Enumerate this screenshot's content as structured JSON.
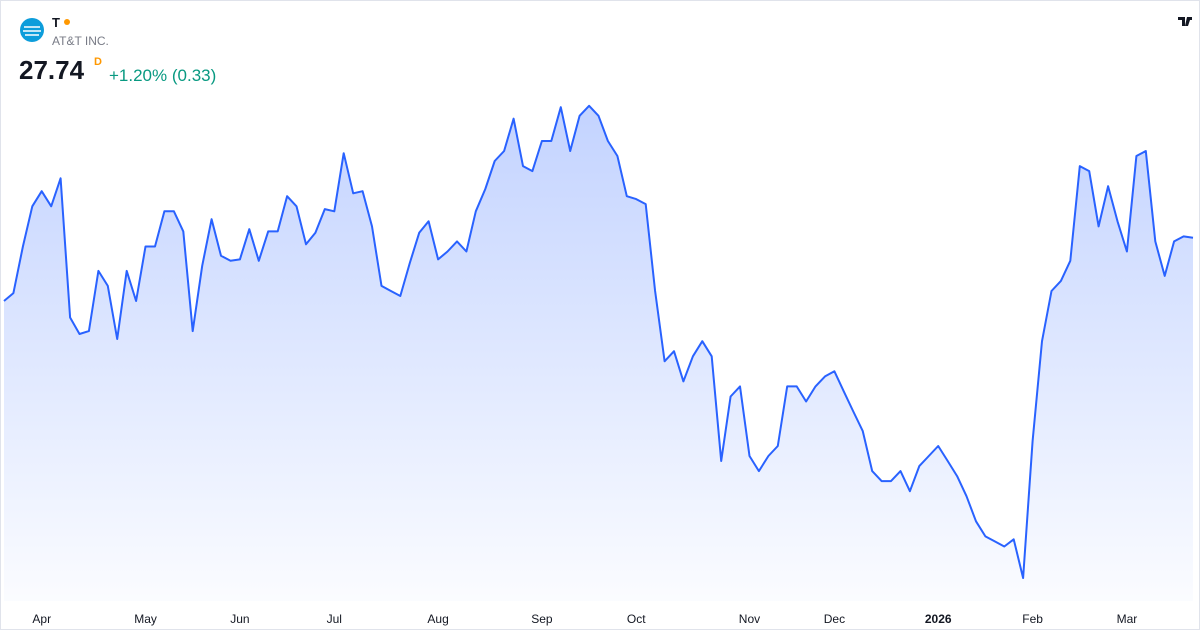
{
  "header": {
    "symbol": "T",
    "name": "AT&T INC.",
    "price": "27.74",
    "interval": "D",
    "change": "+1.20% (0.33)"
  },
  "chart_data": {
    "type": "area",
    "values": [
      26.86,
      26.97,
      27.62,
      28.18,
      28.39,
      28.18,
      28.57,
      26.63,
      26.4,
      26.44,
      27.28,
      27.07,
      26.33,
      27.28,
      26.86,
      27.62,
      27.62,
      28.11,
      28.11,
      27.83,
      26.44,
      27.35,
      28.0,
      27.49,
      27.42,
      27.44,
      27.86,
      27.42,
      27.83,
      27.83,
      28.32,
      28.18,
      27.65,
      27.81,
      28.14,
      28.11,
      28.92,
      28.36,
      28.39,
      27.9,
      27.07,
      27.0,
      26.93,
      27.39,
      27.81,
      27.97,
      27.44,
      27.55,
      27.69,
      27.55,
      28.11,
      28.42,
      28.81,
      28.95,
      29.4,
      28.74,
      28.67,
      29.09,
      29.09,
      29.56,
      28.95,
      29.44,
      29.58,
      29.44,
      29.09,
      28.88,
      28.32,
      28.28,
      28.21,
      27.0,
      26.02,
      26.16,
      25.74,
      26.09,
      26.3,
      26.09,
      24.63,
      25.53,
      25.67,
      24.7,
      24.49,
      24.7,
      24.84,
      25.67,
      25.67,
      25.46,
      25.67,
      25.81,
      25.88,
      25.6,
      25.32,
      25.05,
      24.49,
      24.35,
      24.35,
      24.49,
      24.21,
      24.56,
      24.7,
      24.84,
      24.63,
      24.42,
      24.14,
      23.79,
      23.58,
      23.51,
      23.44,
      23.54,
      23.0,
      24.91,
      26.3,
      27.0,
      27.14,
      27.42,
      28.74,
      28.67,
      27.9,
      28.46,
      27.97,
      27.55,
      28.88,
      28.95,
      27.69,
      27.21,
      27.69,
      27.76,
      27.74
    ],
    "color": "#2962ff",
    "ylim": [
      22.68,
      31.04
    ],
    "xticks": [
      {
        "value": 4,
        "label": "Apr"
      },
      {
        "value": 15,
        "label": "May"
      },
      {
        "value": 25,
        "label": "Jun"
      },
      {
        "value": 35,
        "label": "Jul"
      },
      {
        "value": 46,
        "label": "Aug"
      },
      {
        "value": 57,
        "label": "Sep"
      },
      {
        "value": 67,
        "label": "Oct"
      },
      {
        "value": 79,
        "label": "Nov"
      },
      {
        "value": 88,
        "label": "Dec"
      },
      {
        "value": 99,
        "label": "2026"
      },
      {
        "value": 109,
        "label": "Feb"
      },
      {
        "value": 119,
        "label": "Mar"
      }
    ]
  }
}
